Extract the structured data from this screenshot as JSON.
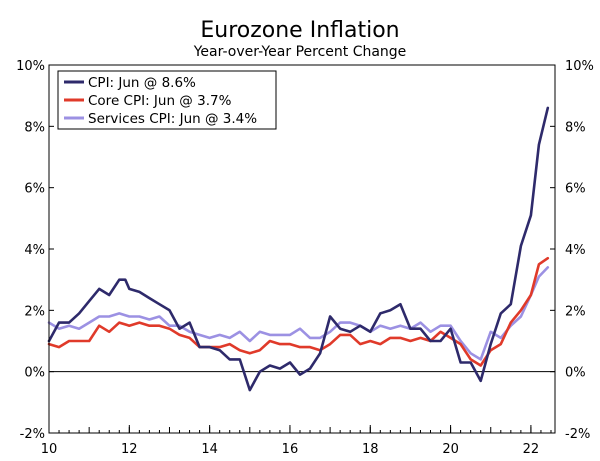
{
  "chart_data": {
    "type": "line",
    "title": "Eurozone Inflation",
    "subtitle": "Year-over-Year Percent Change",
    "xlabel": "",
    "ylabel": "",
    "xlim": [
      2010.0,
      2022.6
    ],
    "ylim": [
      -2,
      10
    ],
    "x_ticks": [
      10,
      12,
      14,
      16,
      18,
      20,
      22
    ],
    "x_tick_labels": [
      "10",
      "12",
      "14",
      "16",
      "18",
      "20",
      "22"
    ],
    "y_ticks": [
      -2,
      0,
      2,
      4,
      6,
      8,
      10
    ],
    "y_tick_labels": [
      "-2%",
      "0%",
      "2%",
      "4%",
      "6%",
      "8%",
      "10%"
    ],
    "zero_line": true,
    "legend_position": "top-left",
    "series": [
      {
        "name": "CPI: Jun @ 8.6%",
        "color": "#2e2a6b",
        "x": [
          2010.0,
          2010.25,
          2010.5,
          2010.75,
          2011.0,
          2011.25,
          2011.5,
          2011.75,
          2011.9,
          2012.0,
          2012.25,
          2012.5,
          2012.75,
          2013.0,
          2013.25,
          2013.5,
          2013.75,
          2014.0,
          2014.25,
          2014.5,
          2014.75,
          2015.0,
          2015.25,
          2015.5,
          2015.75,
          2016.0,
          2016.25,
          2016.5,
          2016.75,
          2017.0,
          2017.25,
          2017.5,
          2017.75,
          2018.0,
          2018.25,
          2018.5,
          2018.75,
          2019.0,
          2019.25,
          2019.5,
          2019.75,
          2020.0,
          2020.25,
          2020.5,
          2020.75,
          2021.0,
          2021.25,
          2021.5,
          2021.75,
          2022.0,
          2022.2,
          2022.42
        ],
        "values": [
          1.0,
          1.6,
          1.6,
          1.9,
          2.3,
          2.7,
          2.5,
          3.0,
          3.0,
          2.7,
          2.6,
          2.4,
          2.2,
          2.0,
          1.4,
          1.6,
          0.8,
          0.8,
          0.7,
          0.4,
          0.4,
          -0.6,
          0.0,
          0.2,
          0.1,
          0.3,
          -0.1,
          0.1,
          0.6,
          1.8,
          1.4,
          1.3,
          1.5,
          1.3,
          1.9,
          2.0,
          2.2,
          1.4,
          1.4,
          1.0,
          1.0,
          1.4,
          0.3,
          0.3,
          -0.3,
          0.9,
          1.9,
          2.2,
          4.1,
          5.1,
          7.4,
          8.6
        ]
      },
      {
        "name": "Core CPI: Jun @ 3.7%",
        "color": "#e03a2a",
        "x": [
          2010.0,
          2010.25,
          2010.5,
          2010.75,
          2011.0,
          2011.25,
          2011.5,
          2011.75,
          2012.0,
          2012.25,
          2012.5,
          2012.75,
          2013.0,
          2013.25,
          2013.5,
          2013.75,
          2014.0,
          2014.25,
          2014.5,
          2014.75,
          2015.0,
          2015.25,
          2015.5,
          2015.75,
          2016.0,
          2016.25,
          2016.5,
          2016.75,
          2017.0,
          2017.25,
          2017.5,
          2017.75,
          2018.0,
          2018.25,
          2018.5,
          2018.75,
          2019.0,
          2019.25,
          2019.5,
          2019.75,
          2020.0,
          2020.25,
          2020.5,
          2020.75,
          2021.0,
          2021.25,
          2021.5,
          2021.75,
          2022.0,
          2022.2,
          2022.42
        ],
        "values": [
          0.9,
          0.8,
          1.0,
          1.0,
          1.0,
          1.5,
          1.3,
          1.6,
          1.5,
          1.6,
          1.5,
          1.5,
          1.4,
          1.2,
          1.1,
          0.8,
          0.8,
          0.8,
          0.9,
          0.7,
          0.6,
          0.7,
          1.0,
          0.9,
          0.9,
          0.8,
          0.8,
          0.7,
          0.9,
          1.2,
          1.2,
          0.9,
          1.0,
          0.9,
          1.1,
          1.1,
          1.0,
          1.1,
          1.0,
          1.3,
          1.1,
          0.9,
          0.4,
          0.2,
          0.7,
          0.9,
          1.6,
          2.0,
          2.5,
          3.5,
          3.7
        ]
      },
      {
        "name": "Services CPI: Jun @ 3.4%",
        "color": "#9c91e3",
        "x": [
          2010.0,
          2010.25,
          2010.5,
          2010.75,
          2011.0,
          2011.25,
          2011.5,
          2011.75,
          2012.0,
          2012.25,
          2012.5,
          2012.75,
          2013.0,
          2013.25,
          2013.5,
          2013.75,
          2014.0,
          2014.25,
          2014.5,
          2014.75,
          2015.0,
          2015.25,
          2015.5,
          2015.75,
          2016.0,
          2016.25,
          2016.5,
          2016.75,
          2017.0,
          2017.25,
          2017.5,
          2017.75,
          2018.0,
          2018.25,
          2018.5,
          2018.75,
          2019.0,
          2019.25,
          2019.5,
          2019.75,
          2020.0,
          2020.25,
          2020.5,
          2020.75,
          2021.0,
          2021.25,
          2021.5,
          2021.75,
          2022.0,
          2022.2,
          2022.42
        ],
        "values": [
          1.6,
          1.4,
          1.5,
          1.4,
          1.6,
          1.8,
          1.8,
          1.9,
          1.8,
          1.8,
          1.7,
          1.8,
          1.5,
          1.5,
          1.3,
          1.2,
          1.1,
          1.2,
          1.1,
          1.3,
          1.0,
          1.3,
          1.2,
          1.2,
          1.2,
          1.4,
          1.1,
          1.1,
          1.3,
          1.6,
          1.6,
          1.5,
          1.3,
          1.5,
          1.4,
          1.5,
          1.4,
          1.6,
          1.3,
          1.5,
          1.5,
          1.0,
          0.6,
          0.4,
          1.3,
          1.1,
          1.5,
          1.8,
          2.5,
          3.1,
          3.4
        ]
      }
    ]
  }
}
